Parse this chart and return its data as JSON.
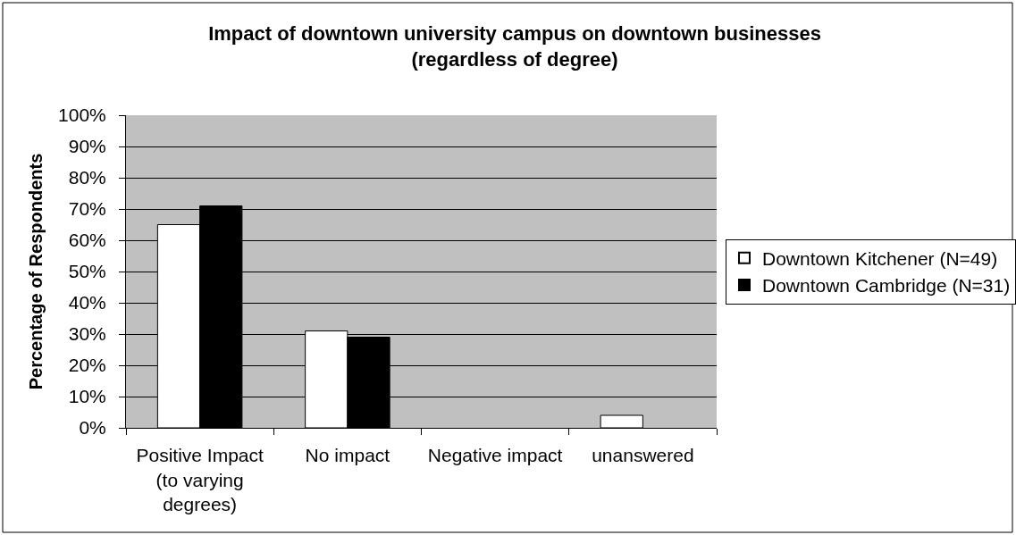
{
  "chart_data": {
    "type": "bar",
    "title": "Impact of downtown university campus on downtown businesses\n(regardless of degree)",
    "ylabel": "Percentage of Respondents",
    "categories": [
      "Positive Impact\n(to varying\ndegrees)",
      "No impact",
      "Negative impact",
      "unanswered"
    ],
    "series": [
      {
        "name": "Downtown Kitchener (N=49)",
        "color": "#ffffff",
        "values": [
          65,
          31,
          0,
          4
        ]
      },
      {
        "name": "Downtown Cambridge (N=31)",
        "color": "#000000",
        "values": [
          71,
          29,
          0,
          0
        ]
      }
    ],
    "ylim": [
      0,
      100
    ],
    "yticks": [
      {
        "value": 0,
        "label": "0%"
      },
      {
        "value": 10,
        "label": "10%"
      },
      {
        "value": 20,
        "label": "20%"
      },
      {
        "value": 30,
        "label": "30%"
      },
      {
        "value": 40,
        "label": "40%"
      },
      {
        "value": 50,
        "label": "50%"
      },
      {
        "value": 60,
        "label": "60%"
      },
      {
        "value": 70,
        "label": "70%"
      },
      {
        "value": 80,
        "label": "80%"
      },
      {
        "value": 90,
        "label": "90%"
      },
      {
        "value": 100,
        "label": "100%"
      }
    ],
    "grid": "y",
    "legend": "right"
  }
}
